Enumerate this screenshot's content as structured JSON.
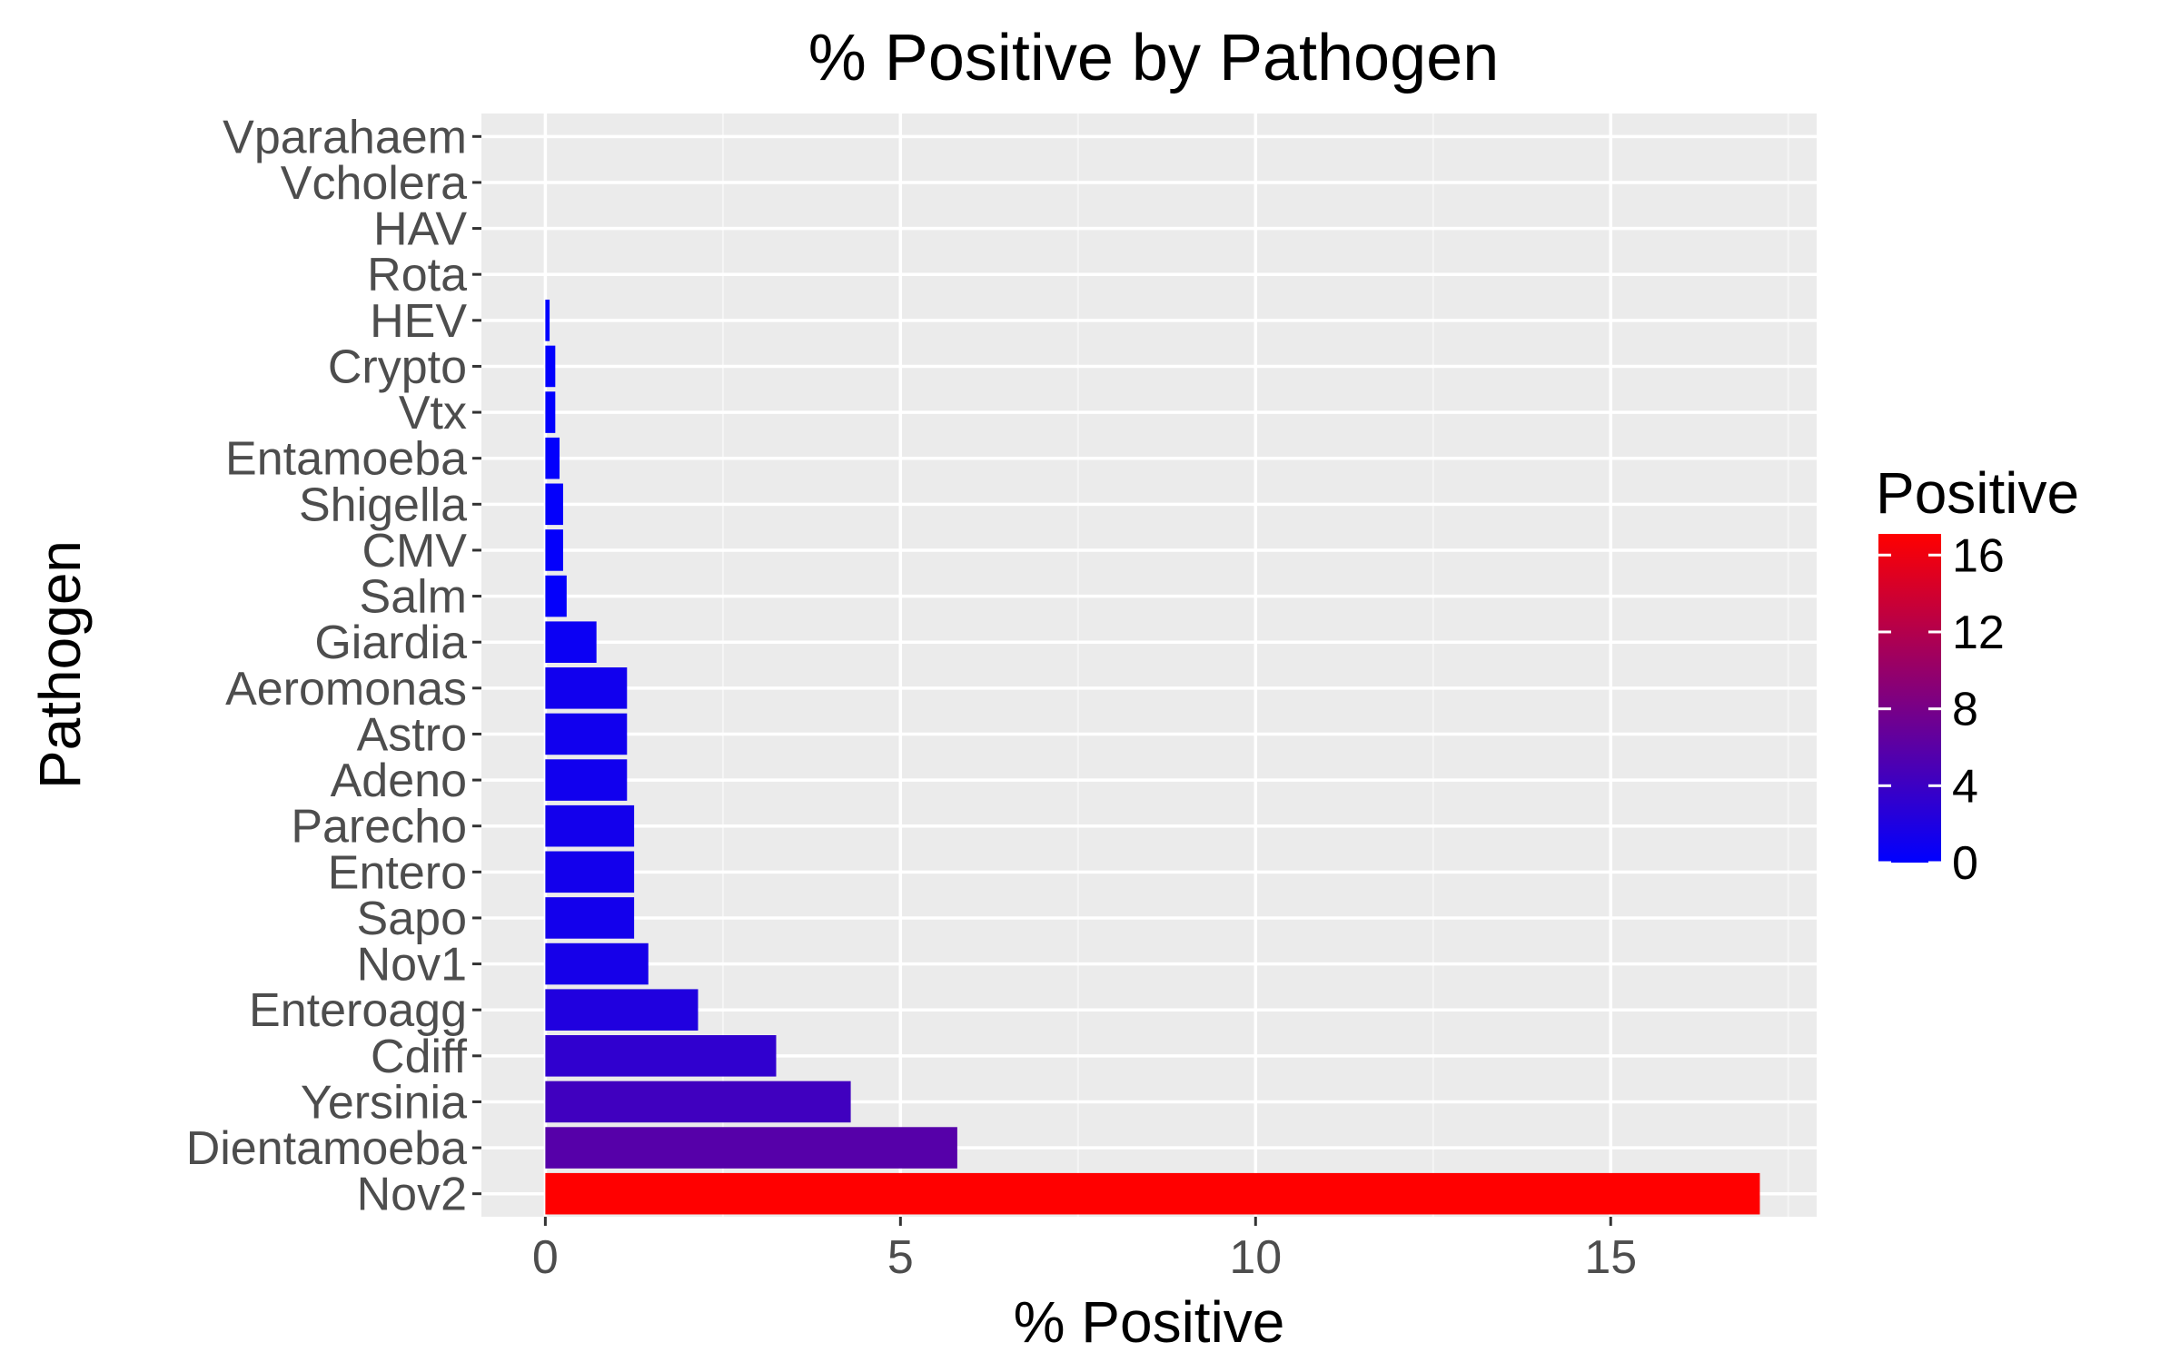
{
  "chart_data": {
    "type": "bar",
    "orientation": "horizontal",
    "title": "% Positive by Pathogen",
    "xlabel": "% Positive",
    "ylabel": "Pathogen",
    "xlim": [
      -0.9,
      17.9
    ],
    "x_ticks": [
      0,
      5,
      10,
      15
    ],
    "grid": true,
    "categories": [
      "Nov2",
      "Dientamoeba",
      "Yersinia",
      "Cdiff",
      "Enteroagg",
      "Nov1",
      "Sapo",
      "Entero",
      "Parecho",
      "Adeno",
      "Astro",
      "Aeromonas",
      "Giardia",
      "Salm",
      "CMV",
      "Shigella",
      "Entamoeba",
      "Vtx",
      "Crypto",
      "HEV",
      "Rota",
      "HAV",
      "Vcholera",
      "Vparahaem"
    ],
    "values": [
      17.1,
      5.8,
      4.3,
      3.25,
      2.15,
      1.45,
      1.25,
      1.25,
      1.25,
      1.15,
      1.15,
      1.15,
      0.72,
      0.3,
      0.25,
      0.25,
      0.2,
      0.14,
      0.14,
      0.06,
      0,
      0,
      0,
      0
    ],
    "legend": {
      "title": "Positive",
      "position": "right",
      "ticks": [
        0,
        4,
        8,
        12,
        16
      ],
      "range": [
        0,
        17.1
      ],
      "colors": {
        "low": "#0000FF",
        "high": "#FF0000"
      }
    },
    "colors": {
      "panel": "#EBEBEB",
      "grid_major": "#FFFFFF",
      "grid_minor": "#F5F5F5"
    }
  }
}
